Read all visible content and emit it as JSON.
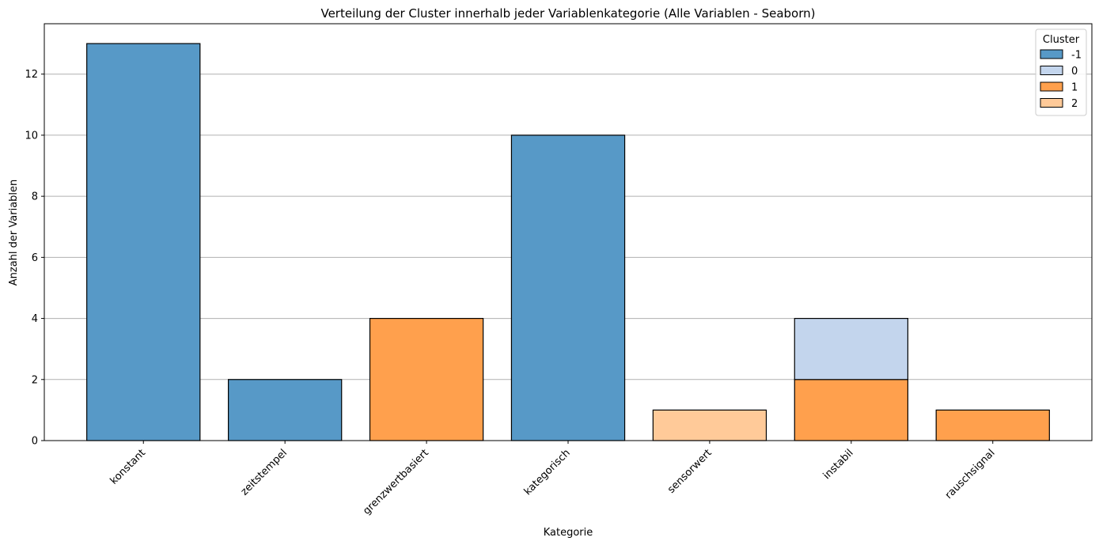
{
  "chart_data": {
    "type": "bar",
    "stacked": true,
    "title": "Verteilung der Cluster innerhalb jeder Variablenkategorie (Alle Variablen - Seaborn)",
    "xlabel": "Kategorie",
    "ylabel": "Anzahl der Variablen",
    "categories": [
      "konstant",
      "zeitstempel",
      "grenzwertbasiert",
      "kategorisch",
      "sensorwert",
      "instabil",
      "rauschsignal"
    ],
    "series": [
      {
        "name": "-1",
        "color": "#5799c7",
        "values": [
          13,
          2,
          0,
          10,
          0,
          0,
          0
        ]
      },
      {
        "name": "0",
        "color": "#c3d5ed",
        "values": [
          0,
          0,
          0,
          0,
          0,
          2,
          0
        ]
      },
      {
        "name": "1",
        "color": "#ffa04d",
        "values": [
          0,
          0,
          4,
          0,
          0,
          2,
          1
        ]
      },
      {
        "name": "2",
        "color": "#ffca99",
        "values": [
          0,
          0,
          0,
          0,
          1,
          0,
          0
        ]
      }
    ],
    "stack_order": [
      "1",
      "0",
      "-1",
      "2"
    ],
    "yticks": [
      0,
      2,
      4,
      6,
      8,
      10,
      12
    ],
    "ylim": [
      0,
      13.65
    ],
    "grid": "y",
    "legend": {
      "title": "Cluster",
      "placement": "top-right"
    }
  }
}
